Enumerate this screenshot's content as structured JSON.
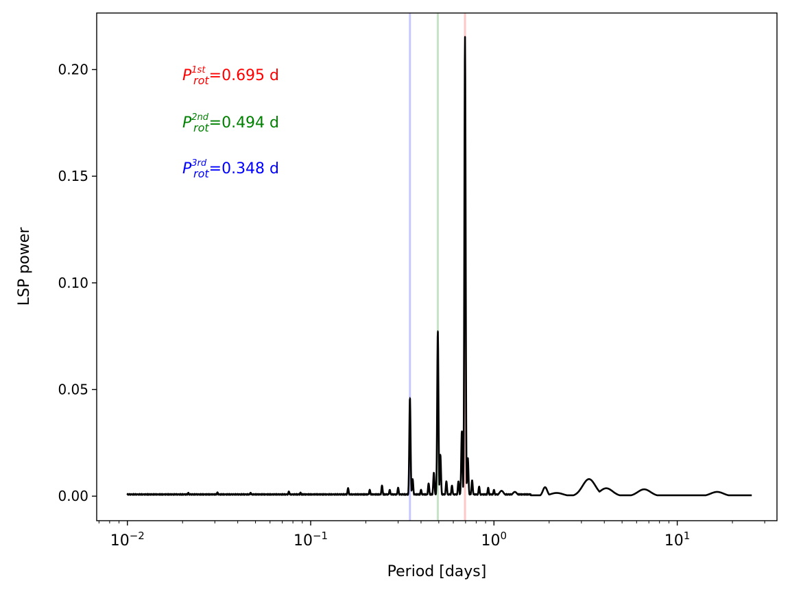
{
  "chart_data": {
    "type": "line",
    "title": "",
    "xlabel": "Period [days]",
    "ylabel": "LSP power",
    "xscale": "log",
    "xlim": [
      0.0068,
      35
    ],
    "ylim": [
      -0.0115,
      0.2265
    ],
    "grid": false,
    "x_tick_labels": [
      {
        "base": "10",
        "exp": "−2",
        "value": 0.01
      },
      {
        "base": "10",
        "exp": "−1",
        "value": 0.1
      },
      {
        "base": "10",
        "exp": "0",
        "value": 1
      },
      {
        "base": "10",
        "exp": "1",
        "value": 10
      }
    ],
    "y_ticks": [
      0.0,
      0.05,
      0.1,
      0.15,
      0.2
    ],
    "y_tick_labels": [
      "0.00",
      "0.05",
      "0.10",
      "0.15",
      "0.20"
    ],
    "series": [
      {
        "color": "#000000",
        "peaks": [
          [
            0.0215,
            0.0016
          ],
          [
            0.031,
            0.0018
          ],
          [
            0.047,
            0.0016
          ],
          [
            0.076,
            0.0022
          ],
          [
            0.088,
            0.0017
          ],
          [
            0.16,
            0.0038
          ],
          [
            0.21,
            0.003
          ],
          [
            0.245,
            0.005
          ],
          [
            0.27,
            0.003
          ],
          [
            0.3,
            0.004
          ],
          [
            0.348,
            0.0462
          ],
          [
            0.36,
            0.008
          ],
          [
            0.4,
            0.003
          ],
          [
            0.44,
            0.006
          ],
          [
            0.47,
            0.011
          ],
          [
            0.494,
            0.0775
          ],
          [
            0.51,
            0.0195
          ],
          [
            0.55,
            0.007
          ],
          [
            0.59,
            0.005
          ],
          [
            0.64,
            0.007
          ],
          [
            0.668,
            0.0305
          ],
          [
            0.695,
            0.2155
          ],
          [
            0.72,
            0.018
          ],
          [
            0.76,
            0.0075
          ],
          [
            0.83,
            0.0045
          ],
          [
            0.93,
            0.004
          ],
          [
            1.0,
            0.003
          ],
          [
            1.1,
            0.0025
          ],
          [
            1.3,
            0.002
          ],
          [
            1.9,
            0.0042
          ],
          [
            2.2,
            0.0015
          ],
          [
            3.3,
            0.008
          ],
          [
            4.1,
            0.0037
          ],
          [
            6.6,
            0.0032
          ],
          [
            16.5,
            0.002
          ]
        ],
        "x_range": [
          0.01,
          25.5
        ]
      }
    ],
    "vlines": [
      {
        "x": 0.348,
        "color": "#0000ff"
      },
      {
        "x": 0.494,
        "color": "#008000"
      },
      {
        "x": 0.695,
        "color": "#ff0000"
      }
    ],
    "annotations": [
      {
        "base": "P",
        "sub": "rot",
        "sup": "1st",
        "value": "=0.695 d",
        "color": "#ff0000"
      },
      {
        "base": "P",
        "sub": "rot",
        "sup": "2nd",
        "value": "=0.494 d",
        "color": "#008000"
      },
      {
        "base": "P",
        "sub": "rot",
        "sup": "3rd",
        "value": "=0.348 d",
        "color": "#0000ff"
      }
    ]
  }
}
